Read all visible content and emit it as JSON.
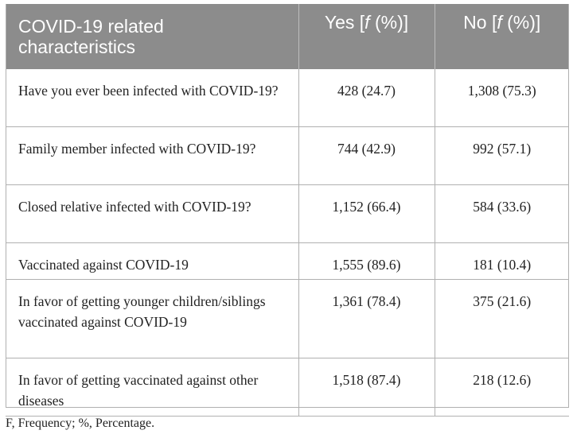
{
  "table": {
    "headers": {
      "characteristic_line1": "COVID-19 related",
      "characteristic_line2": "characteristics",
      "yes_prefix": "Yes [",
      "yes_italic": "f",
      "yes_suffix": " (%)]",
      "no_prefix": "No [",
      "no_italic": "f",
      "no_suffix": " (%)]"
    },
    "rows": [
      {
        "characteristic": "Have you ever been infected with COVID-19?",
        "yes": "428 (24.7)",
        "no": "1,308 (75.3)"
      },
      {
        "characteristic": "Family member infected with COVID-19?",
        "yes": "744 (42.9)",
        "no": "992 (57.1)"
      },
      {
        "characteristic": "Closed relative infected with COVID-19?",
        "yes": "1,152 (66.4)",
        "no": "584 (33.6)"
      },
      {
        "characteristic": "Vaccinated against COVID-19",
        "yes": "1,555 (89.6)",
        "no": "181 (10.4)"
      },
      {
        "characteristic": "In favor of getting younger children/siblings vaccinated against COVID-19",
        "yes": "1,361 (78.4)",
        "no": "375 (21.6)"
      },
      {
        "characteristic": "In favor of getting vaccinated against other diseases",
        "yes": "1,518 (87.4)",
        "no": "218 (12.6)"
      }
    ]
  },
  "footnote": "F, Frequency; %, Percentage.",
  "colors": {
    "header_background": "#8c8c8c",
    "header_text": "#ffffff",
    "grid_lines": "#b0b0b0",
    "body_text": "#222222"
  }
}
